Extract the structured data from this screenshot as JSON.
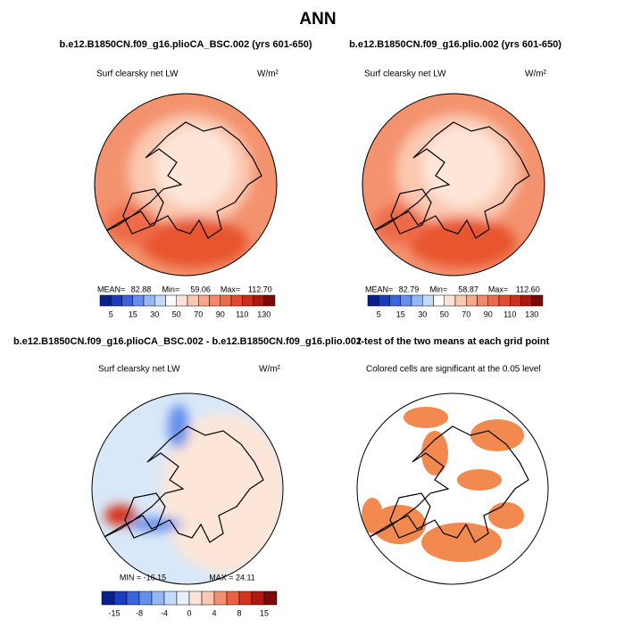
{
  "title": "ANN",
  "panels": [
    {
      "title": "b.e12.B1850CN.f09_g16.plioCA_BSC.002 (yrs 601-650)",
      "subtitle": "Surf clearsky net LW",
      "units": "W/m²",
      "stats": [
        "MEAN=",
        "82.88",
        "Min=",
        "59.06",
        "Max=",
        "112.70"
      ],
      "colorbar": {
        "labels": [
          "5",
          "15",
          "30",
          "50",
          "70",
          "90",
          "110",
          "130"
        ],
        "colors": [
          "#08208c",
          "#1c3cc0",
          "#3a64dc",
          "#6490ec",
          "#94b8f4",
          "#c4dcfa",
          "#ffffff",
          "#fde4d6",
          "#fbc8b0",
          "#f8a888",
          "#f48866",
          "#ee6a48",
          "#e34a2e",
          "#cc2e1c",
          "#a81a10",
          "#7a0a06"
        ]
      }
    },
    {
      "title": "b.e12.B1850CN.f09_g16.plio.002 (yrs 601-650)",
      "subtitle": "Surf clearsky net LW",
      "units": "W/m²",
      "stats": [
        "MEAN=",
        "82.79",
        "Min=",
        "58.87",
        "Max=",
        "112.60"
      ],
      "colorbar": {
        "labels": [
          "5",
          "15",
          "30",
          "50",
          "70",
          "90",
          "110",
          "130"
        ],
        "colors": [
          "#08208c",
          "#1c3cc0",
          "#3a64dc",
          "#6490ec",
          "#94b8f4",
          "#c4dcfa",
          "#ffffff",
          "#fde4d6",
          "#fbc8b0",
          "#f8a888",
          "#f48866",
          "#ee6a48",
          "#e34a2e",
          "#cc2e1c",
          "#a81a10",
          "#7a0a06"
        ]
      }
    },
    {
      "title": "b.e12.B1850CN.f09_g16.plioCA_BSC.002 - b.e12.B1850CN.f09_g16.plio.002",
      "subtitle": "Surf clearsky net LW",
      "units": "W/m²",
      "stats": [
        "MIN = -16.15",
        "MAX =  24.11"
      ],
      "colorbar": {
        "labels": [
          "-15",
          "-8",
          "-4",
          "0",
          "4",
          "8",
          "15"
        ],
        "colors": [
          "#08208c",
          "#1c3cc0",
          "#3a64dc",
          "#6490ec",
          "#94b8f4",
          "#c4dcfa",
          "#e6f0fc",
          "#fde4d6",
          "#fbc8b0",
          "#f49070",
          "#ea6040",
          "#d4341e",
          "#b01a10",
          "#7a0a06"
        ]
      }
    },
    {
      "title": "t-test of the two means at each grid point",
      "subtitle": "Colored cells are significant at the 0.05 level"
    }
  ]
}
